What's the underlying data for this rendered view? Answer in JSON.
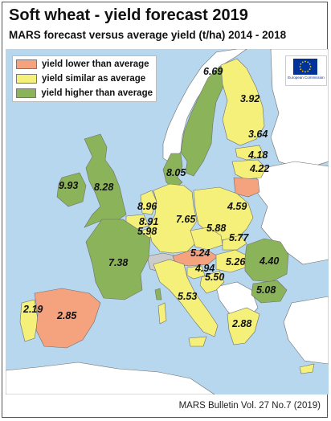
{
  "title": "Soft wheat - yield forecast 2019",
  "subtitle": "MARS forecast versus average yield (t/ha) 2014 - 2018",
  "legend": [
    {
      "label": "yield lower than average",
      "color": "#f5a37f"
    },
    {
      "label": "yield similar as average",
      "color": "#f4f07a"
    },
    {
      "label": "yield higher than average",
      "color": "#8bb35a"
    }
  ],
  "colors": {
    "sea": "#b7d7ee",
    "non_eu": "#ffffff",
    "no_data": "#cccccc",
    "border": "#6e6e6e"
  },
  "eu_logo": {
    "icon": "eu-flag-icon",
    "caption": "European Commission"
  },
  "regions": [
    {
      "country": "Ireland",
      "value": "9.93",
      "category": "higher"
    },
    {
      "country": "United Kingdom",
      "value": "8.28",
      "category": "higher"
    },
    {
      "country": "Denmark",
      "value": "8.05",
      "category": "higher"
    },
    {
      "country": "Sweden",
      "value": "6.69",
      "category": "higher"
    },
    {
      "country": "Finland",
      "value": "3.92",
      "category": "similar"
    },
    {
      "country": "Estonia",
      "value": "3.64",
      "category": "similar"
    },
    {
      "country": "Latvia",
      "value": "4.18",
      "category": "similar"
    },
    {
      "country": "Lithuania",
      "value": "4.22",
      "category": "lower"
    },
    {
      "country": "Netherlands",
      "value": "8.96",
      "category": "similar"
    },
    {
      "country": "Belgium",
      "value": "8.91",
      "category": "similar"
    },
    {
      "country": "Luxembourg",
      "value": "5.98",
      "category": "similar"
    },
    {
      "country": "Germany",
      "value": "7.65",
      "category": "similar"
    },
    {
      "country": "Poland",
      "value": "4.59",
      "category": "similar"
    },
    {
      "country": "Czechia",
      "value": "5.88",
      "category": "similar"
    },
    {
      "country": "Slovakia",
      "value": "5.77",
      "category": "similar"
    },
    {
      "country": "Austria",
      "value": "5.24",
      "category": "lower"
    },
    {
      "country": "Hungary",
      "value": "5.26",
      "category": "similar"
    },
    {
      "country": "Slovenia",
      "value": "4.94",
      "category": "similar"
    },
    {
      "country": "Croatia",
      "value": "5.50",
      "category": "similar"
    },
    {
      "country": "Romania",
      "value": "4.40",
      "category": "higher"
    },
    {
      "country": "Bulgaria",
      "value": "5.08",
      "category": "higher"
    },
    {
      "country": "France",
      "value": "7.38",
      "category": "higher"
    },
    {
      "country": "Italy",
      "value": "5.53",
      "category": "similar"
    },
    {
      "country": "Greece",
      "value": "2.88",
      "category": "similar"
    },
    {
      "country": "Portugal",
      "value": "2.19",
      "category": "similar"
    },
    {
      "country": "Spain",
      "value": "2.85",
      "category": "lower"
    }
  ],
  "source": "MARS Bulletin Vol. 27 No.7 (2019)"
}
